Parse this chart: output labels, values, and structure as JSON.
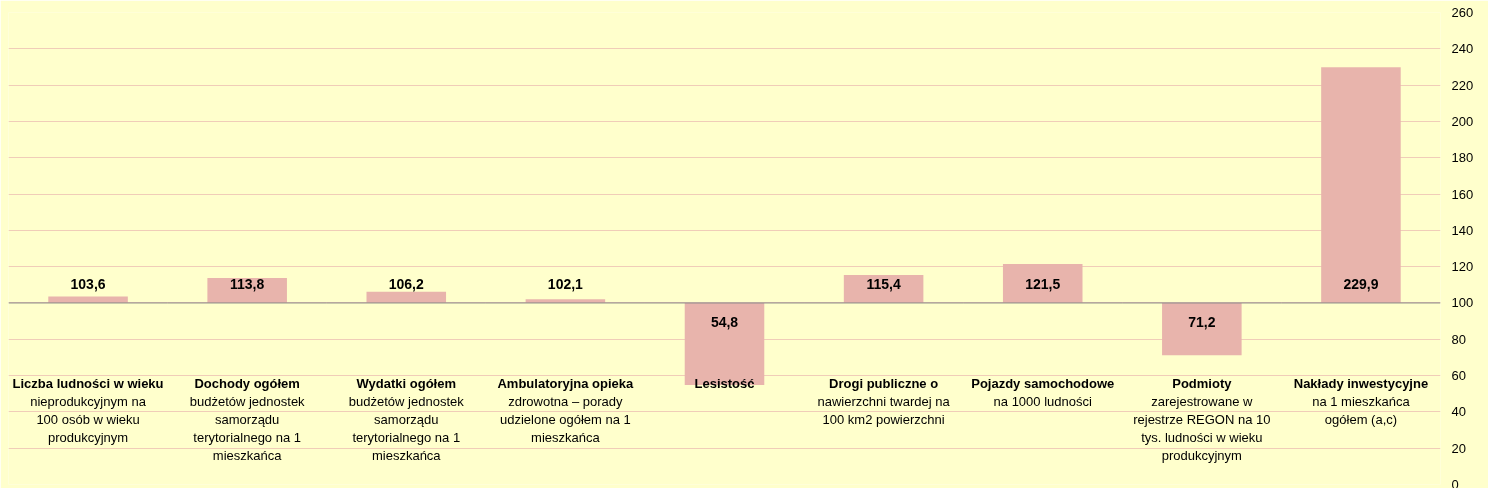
{
  "chart_data": {
    "type": "bar",
    "categories": [
      "Liczba ludności w wieku\nnieprodukcyjnym na\n100 osób w wieku\nprodukcyjnym",
      "Dochody ogółem\nbudżetów jednostek\nsamorządu\nterytorialnego na 1\nmieszkańca",
      "Wydatki ogółem\nbudżetów jednostek\nsamorządu\nterytorialnego na 1\nmieszkańca",
      "Ambulatoryjna opieka\nzdrowotna – porady\nudzielone ogółem na 1\nmieszkańca",
      "Lesistość",
      "Drogi publiczne o\nnawierzchni twardej na\n100 km2 powierzchni",
      "Pojazdy samochodowe\nna 1000 ludności",
      "Podmioty\nzarejestrowane w\nrejestrze REGON na 10\ntys. ludności w wieku\nprodukcyjnym",
      "Nakłady inwestycyjne\nna 1 mieszkańca\nogółem (a,c)"
    ],
    "base": [
      100,
      100,
      100,
      100,
      100,
      100,
      100,
      100,
      100
    ],
    "values": [
      3.6,
      13.8,
      6.2,
      2.1,
      -45.2,
      15.4,
      21.5,
      -28.8,
      129.9
    ],
    "value_labels": [
      "103,6",
      "113,8",
      "106,2",
      "102,1",
      "54,8",
      "115,4",
      "121,5",
      "71,2",
      "229,9"
    ],
    "color": "#e8b4ac",
    "ylim": [
      0,
      260
    ],
    "yticks": [
      0,
      20,
      40,
      60,
      80,
      100,
      120,
      140,
      160,
      180,
      200,
      220,
      240,
      260
    ],
    "grid": "y"
  }
}
